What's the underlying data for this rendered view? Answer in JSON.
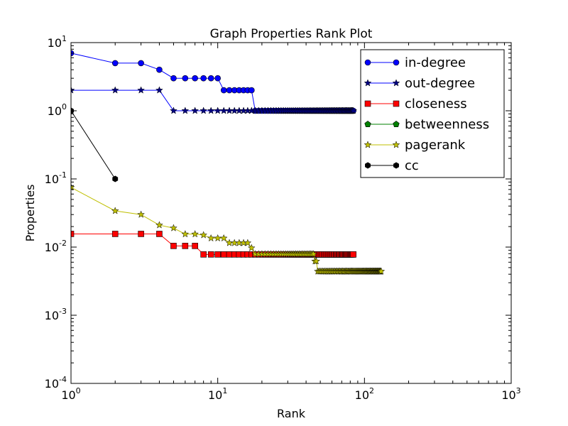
{
  "chart_data": {
    "type": "line",
    "title": "Graph Properties Rank Plot",
    "xlabel": "Rank",
    "ylabel": "Properties",
    "xscale": "log",
    "yscale": "log",
    "xlim": [
      1,
      1000
    ],
    "ylim": [
      0.0001,
      10
    ],
    "x_ticks": [
      1,
      10,
      100,
      1000
    ],
    "y_ticks": [
      0.0001,
      0.001,
      0.01,
      0.1,
      1,
      10
    ],
    "x_tick_labels": [
      {
        "base": "10",
        "exp": "0"
      },
      {
        "base": "10",
        "exp": "1"
      },
      {
        "base": "10",
        "exp": "2"
      },
      {
        "base": "10",
        "exp": "3"
      }
    ],
    "y_tick_labels": [
      {
        "base": "10",
        "exp": "-4"
      },
      {
        "base": "10",
        "exp": "-3"
      },
      {
        "base": "10",
        "exp": "-2"
      },
      {
        "base": "10",
        "exp": "-1"
      },
      {
        "base": "10",
        "exp": "0"
      },
      {
        "base": "10",
        "exp": "1"
      }
    ],
    "grid": false,
    "legend_position": "top-right",
    "series": [
      {
        "name": "in-degree",
        "color": "#0000ff",
        "marker": "circle",
        "runs": [
          [
            1,
            1,
            7
          ],
          [
            2,
            3,
            5
          ],
          [
            4,
            4,
            4
          ],
          [
            5,
            10,
            3
          ],
          [
            11,
            17,
            2
          ],
          [
            18,
            84,
            1
          ]
        ]
      },
      {
        "name": "out-degree",
        "color": "#0000ff",
        "marker_fill": "#000080",
        "marker": "star",
        "runs": [
          [
            1,
            4,
            2
          ],
          [
            5,
            84,
            1
          ]
        ]
      },
      {
        "name": "closeness",
        "color": "#ff0000",
        "marker": "square",
        "runs": [
          [
            1,
            4,
            0.0156
          ],
          [
            5,
            7,
            0.0104
          ],
          [
            8,
            84,
            0.0078
          ]
        ]
      },
      {
        "name": "betweenness",
        "color": "#008000",
        "marker": "pentagon",
        "runs": []
      },
      {
        "name": "pagerank",
        "color": "#bfbf00",
        "marker": "star",
        "runs": [
          [
            1,
            1,
            0.075
          ],
          [
            2,
            2,
            0.034
          ],
          [
            3,
            3,
            0.03
          ],
          [
            4,
            4,
            0.021
          ],
          [
            5,
            5,
            0.019
          ],
          [
            6,
            7,
            0.0155
          ],
          [
            8,
            8,
            0.015
          ],
          [
            9,
            11,
            0.0135
          ],
          [
            12,
            16,
            0.0115
          ],
          [
            17,
            17,
            0.0097
          ],
          [
            18,
            45,
            0.0079
          ],
          [
            46,
            47,
            0.0062
          ],
          [
            48,
            130,
            0.0044
          ]
        ]
      },
      {
        "name": "cc",
        "color": "#000000",
        "marker": "hexagon",
        "runs": [
          [
            1,
            1,
            1
          ],
          [
            2,
            2,
            0.1
          ]
        ]
      }
    ]
  }
}
